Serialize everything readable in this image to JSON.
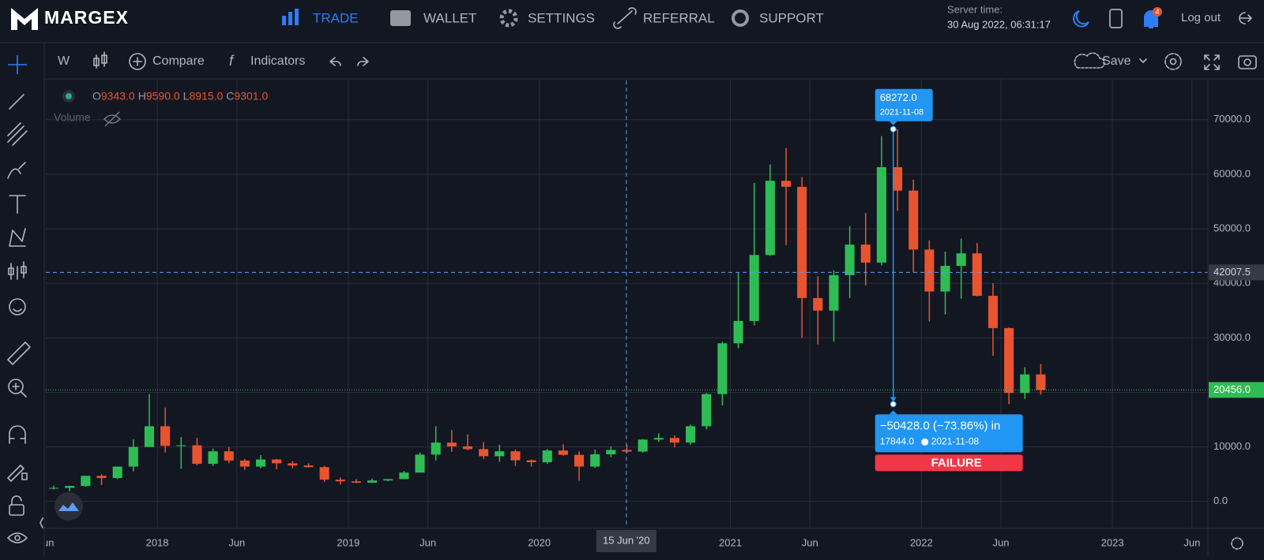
{
  "header": {
    "logo": "MARGEX",
    "nav": [
      "TRADE",
      "WALLET",
      "SETTINGS",
      "REFERRAL",
      "SUPPORT"
    ],
    "server_time_label": "Server time:",
    "server_time": "30 Aug 2022, 06:31:17",
    "notifications": 4,
    "logout": "Log out"
  },
  "toolbar": {
    "interval": "W",
    "compare": "Compare",
    "indicators": "Indicators",
    "save": "Save"
  },
  "chart_data": {
    "type": "candlestick",
    "ohlc": [
      {
        "label": "O",
        "value": "9343.0"
      },
      {
        "label": "H",
        "value": "9590.0"
      },
      {
        "label": "L",
        "value": "8915.0"
      },
      {
        "label": "C",
        "value": "9301.0"
      }
    ],
    "volume_label": "Volume",
    "up_color": "#2ebd55",
    "down_color": "#e8542f",
    "xlim": [
      "2017-06",
      "2023-07"
    ],
    "xticks": [
      {
        "value": "2017-06",
        "label": "Jun"
      },
      {
        "value": "2018-01",
        "label": "2018"
      },
      {
        "value": "2018-06",
        "label": "Jun"
      },
      {
        "value": "2019-01",
        "label": "2019"
      },
      {
        "value": "2019-06",
        "label": "Jun"
      },
      {
        "value": "2020-01",
        "label": "2020"
      },
      {
        "value": "2021-01",
        "label": "2021"
      },
      {
        "value": "2021-06",
        "label": "Jun"
      },
      {
        "value": "2022-01",
        "label": "2022"
      },
      {
        "value": "2022-06",
        "label": "Jun"
      },
      {
        "value": "2023-01",
        "label": "2023"
      },
      {
        "value": "2023-06",
        "label": "Jun"
      }
    ],
    "ylim": [
      -4800,
      77200
    ],
    "yticks": [
      {
        "value": 0,
        "label": "0.0"
      },
      {
        "value": 10000,
        "label": "10000.0"
      },
      {
        "value": 20000,
        "label": "20000.0"
      },
      {
        "value": 30000,
        "label": "30000.0"
      },
      {
        "value": 40000,
        "label": "40000.0"
      },
      {
        "value": 50000,
        "label": "50000.0"
      },
      {
        "value": 60000,
        "label": "60000.0"
      },
      {
        "value": 70000,
        "label": "70000.0"
      }
    ],
    "grid": true,
    "x": [
      "2017-06",
      "2017-07",
      "2017-08",
      "2017-09",
      "2017-10",
      "2017-11",
      "2017-12",
      "2018-01",
      "2018-02",
      "2018-03",
      "2018-04",
      "2018-05",
      "2018-06",
      "2018-07",
      "2018-08",
      "2018-09",
      "2018-10",
      "2018-11",
      "2018-12",
      "2019-01",
      "2019-02",
      "2019-03",
      "2019-04",
      "2019-05",
      "2019-06",
      "2019-07",
      "2019-08",
      "2019-09",
      "2019-10",
      "2019-11",
      "2019-12",
      "2020-01",
      "2020-02",
      "2020-03",
      "2020-04",
      "2020-05",
      "2020-06",
      "2020-07",
      "2020-08",
      "2020-09",
      "2020-10",
      "2020-11",
      "2020-12",
      "2021-01",
      "2021-02",
      "2021-03",
      "2021-04",
      "2021-05",
      "2021-06",
      "2021-07",
      "2021-08",
      "2021-09",
      "2021-10",
      "2021-11",
      "2021-12",
      "2022-01",
      "2022-02",
      "2022-03",
      "2022-04",
      "2022-05",
      "2022-06",
      "2022-07",
      "2022-08"
    ],
    "open": [
      2400,
      2500,
      2850,
      4700,
      4300,
      6400,
      10000,
      13800,
      10200,
      10300,
      6900,
      9200,
      7500,
      6400,
      7700,
      7000,
      6600,
      6300,
      4000,
      3700,
      3450,
      3850,
      4100,
      5300,
      8600,
      10800,
      10100,
      9600,
      8300,
      9200,
      7550,
      7200,
      9350,
      8550,
      6400,
      8650,
      9450,
      9150,
      11350,
      11650,
      10800,
      13800,
      19700,
      29000,
      33100,
      45200,
      58800,
      57700,
      37300,
      35000,
      41500,
      47100,
      43800,
      61300,
      57000,
      46200,
      38500,
      43200,
      45500,
      37700,
      31800,
      19900,
      23300
    ],
    "high": [
      2900,
      2900,
      4700,
      5000,
      6400,
      11400,
      19700,
      17200,
      11800,
      11700,
      9700,
      10000,
      7800,
      8500,
      7800,
      7400,
      7000,
      6500,
      4400,
      4100,
      4200,
      4100,
      5600,
      9000,
      13800,
      13100,
      12300,
      10900,
      10400,
      9500,
      7700,
      9600,
      10500,
      9200,
      9500,
      10100,
      10400,
      11450,
      12500,
      12100,
      14100,
      19900,
      29300,
      41900,
      58400,
      61800,
      64800,
      59500,
      41300,
      42400,
      50500,
      52900,
      67000,
      68272,
      59000,
      47900,
      45800,
      48200,
      47400,
      40000,
      31900,
      24600,
      25200
    ],
    "low": [
      2200,
      1900,
      2700,
      3000,
      4100,
      5500,
      10000,
      9000,
      6000,
      6600,
      6500,
      7000,
      5800,
      6100,
      5900,
      6100,
      6200,
      3600,
      3100,
      3350,
      3400,
      3700,
      4100,
      5300,
      7500,
      9100,
      9400,
      7800,
      7300,
      6500,
      6400,
      6900,
      8400,
      3800,
      6150,
      8100,
      8900,
      8950,
      10900,
      9900,
      10400,
      13200,
      17600,
      28100,
      32300,
      45000,
      47000,
      30000,
      28800,
      29300,
      37300,
      39600,
      43300,
      53300,
      42000,
      33000,
      34300,
      37200,
      37600,
      26700,
      17844,
      18800,
      19600
    ],
    "close": [
      2500,
      2850,
      4700,
      4300,
      6400,
      10000,
      13800,
      10200,
      10300,
      6900,
      9200,
      7500,
      6400,
      7700,
      7000,
      6600,
      6300,
      4000,
      3700,
      3450,
      3850,
      4100,
      5300,
      8600,
      10800,
      10100,
      9600,
      8300,
      9200,
      7550,
      7200,
      9350,
      8550,
      6400,
      8650,
      9450,
      9150,
      11350,
      11650,
      10800,
      13800,
      19700,
      29000,
      33100,
      45200,
      58800,
      57700,
      37300,
      35000,
      41500,
      47100,
      43800,
      61300,
      57000,
      46200,
      38500,
      43200,
      45500,
      37700,
      31800,
      19900,
      23300,
      20456
    ],
    "crosshair": {
      "x": "2020-06-15",
      "x_label": "15 Jun '20",
      "y": 42007.5
    },
    "last_price": {
      "value": 20456,
      "label": "20456.0"
    },
    "measure": {
      "x": "2021-11-08",
      "from": 68272,
      "from_label": "68272.0",
      "date_label": "2021-11-08",
      "to": 17844,
      "change_text": "−50428.0 (−73.86%) in",
      "to_label": "17844.0",
      "to_date": "2021-11-08",
      "result": "FAILURE"
    }
  }
}
